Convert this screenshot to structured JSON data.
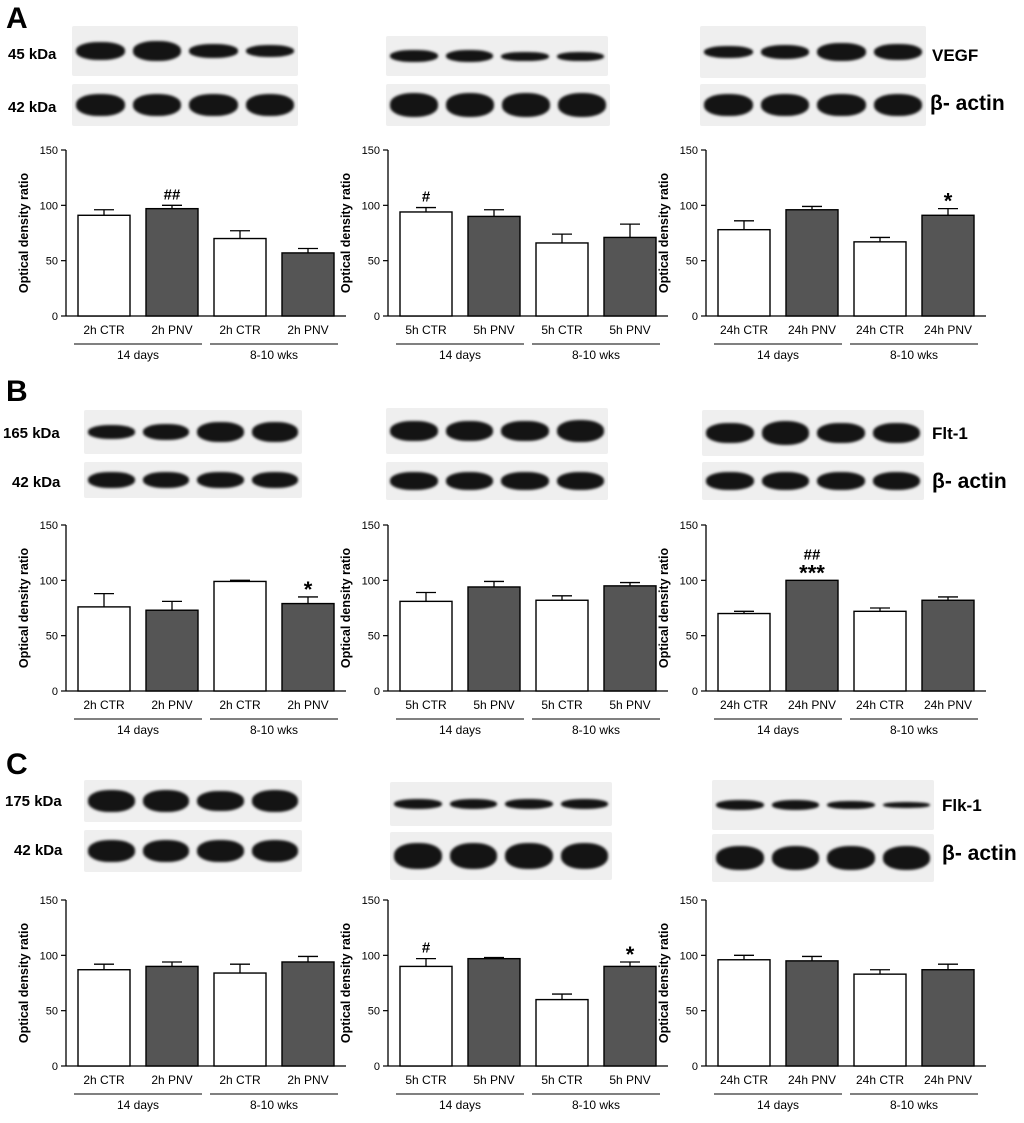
{
  "panels": [
    {
      "letter": "A",
      "protein": "VEGF",
      "beta": "β- actin",
      "marker_kda": "45 kDa",
      "actin_kda": "42 kDa"
    },
    {
      "letter": "B",
      "protein": "Flt-1",
      "beta": "β- actin",
      "marker_kda": "165 kDa",
      "actin_kda": "42 kDa"
    },
    {
      "letter": "C",
      "protein": "Flk-1",
      "beta": "β- actin",
      "marker_kda": "175 kDa",
      "actin_kda": "42 kDa"
    }
  ],
  "colors": {
    "ctr": "#ffffff",
    "pnv": "#555555",
    "axis": "#000000"
  },
  "chart_data": [
    {
      "type": "bar",
      "panel": "A",
      "ylabel": "Optical density ratio",
      "ylim": [
        0,
        150
      ],
      "yticks": [
        0,
        50,
        100,
        150
      ],
      "categories": [
        "2h CTR",
        "2h PNV",
        "2h CTR",
        "2h PNV"
      ],
      "values": [
        91,
        97,
        70,
        57
      ],
      "errors": [
        5,
        3,
        7,
        4
      ],
      "annotations": [
        "",
        "##",
        "",
        ""
      ],
      "groups": [
        "14 days",
        "8-10 wks"
      ]
    },
    {
      "type": "bar",
      "panel": "A",
      "ylabel": "Optical density ratio",
      "ylim": [
        0,
        150
      ],
      "yticks": [
        0,
        50,
        100,
        150
      ],
      "categories": [
        "5h CTR",
        "5h PNV",
        "5h CTR",
        "5h PNV"
      ],
      "values": [
        94,
        90,
        66,
        71
      ],
      "errors": [
        4,
        6,
        8,
        12
      ],
      "annotations": [
        "#",
        "",
        "",
        ""
      ],
      "groups": [
        "14 days",
        "8-10 wks"
      ]
    },
    {
      "type": "bar",
      "panel": "A",
      "ylabel": "Optical density ratio",
      "ylim": [
        0,
        150
      ],
      "yticks": [
        0,
        50,
        100,
        150
      ],
      "categories": [
        "24h CTR",
        "24h PNV",
        "24h CTR",
        "24h PNV"
      ],
      "values": [
        78,
        96,
        67,
        91
      ],
      "errors": [
        8,
        3,
        4,
        6
      ],
      "annotations": [
        "",
        "",
        "",
        "*"
      ],
      "groups": [
        "14 days",
        "8-10 wks"
      ]
    },
    {
      "type": "bar",
      "panel": "B",
      "ylabel": "Optical density ratio",
      "ylim": [
        0,
        150
      ],
      "yticks": [
        0,
        50,
        100,
        150
      ],
      "categories": [
        "2h CTR",
        "2h PNV",
        "2h CTR",
        "2h PNV"
      ],
      "values": [
        76,
        73,
        99,
        79
      ],
      "errors": [
        12,
        8,
        1,
        6
      ],
      "annotations": [
        "",
        "",
        "",
        "*"
      ],
      "groups": [
        "14 days",
        "8-10 wks"
      ]
    },
    {
      "type": "bar",
      "panel": "B",
      "ylabel": "Optical density ratio",
      "ylim": [
        0,
        150
      ],
      "yticks": [
        0,
        50,
        100,
        150
      ],
      "categories": [
        "5h CTR",
        "5h PNV",
        "5h CTR",
        "5h PNV"
      ],
      "values": [
        81,
        94,
        82,
        95
      ],
      "errors": [
        8,
        5,
        4,
        3
      ],
      "annotations": [
        "",
        "",
        "",
        ""
      ],
      "groups": [
        "14 days",
        "8-10 wks"
      ]
    },
    {
      "type": "bar",
      "panel": "B",
      "ylabel": "Optical density ratio",
      "ylim": [
        0,
        150
      ],
      "yticks": [
        0,
        50,
        100,
        150
      ],
      "categories": [
        "24h CTR",
        "24h PNV",
        "24h CTR",
        "24h PNV"
      ],
      "values": [
        70,
        100,
        72,
        82
      ],
      "errors": [
        2,
        0,
        3,
        3
      ],
      "annotations": [
        "",
        "##\n***",
        "",
        ""
      ],
      "groups": [
        "14 days",
        "8-10 wks"
      ]
    },
    {
      "type": "bar",
      "panel": "C",
      "ylabel": "Optical density ratio",
      "ylim": [
        0,
        150
      ],
      "yticks": [
        0,
        50,
        100,
        150
      ],
      "categories": [
        "2h CTR",
        "2h PNV",
        "2h CTR",
        "2h PNV"
      ],
      "values": [
        87,
        90,
        84,
        94
      ],
      "errors": [
        5,
        4,
        8,
        5
      ],
      "annotations": [
        "",
        "",
        "",
        ""
      ],
      "groups": [
        "14 days",
        "8-10 wks"
      ]
    },
    {
      "type": "bar",
      "panel": "C",
      "ylabel": "Optical density ratio",
      "ylim": [
        0,
        150
      ],
      "yticks": [
        0,
        50,
        100,
        150
      ],
      "categories": [
        "5h CTR",
        "5h PNV",
        "5h CTR",
        "5h PNV"
      ],
      "values": [
        90,
        97,
        60,
        90
      ],
      "errors": [
        7,
        1,
        5,
        4
      ],
      "annotations": [
        "#",
        "",
        "",
        "*"
      ],
      "groups": [
        "14 days",
        "8-10 wks"
      ]
    },
    {
      "type": "bar",
      "panel": "C",
      "ylabel": "Optical density ratio",
      "ylim": [
        0,
        150
      ],
      "yticks": [
        0,
        50,
        100,
        150
      ],
      "categories": [
        "24h CTR",
        "24h PNV",
        "24h CTR",
        "24h PNV"
      ],
      "values": [
        96,
        95,
        83,
        87
      ],
      "errors": [
        4,
        4,
        4,
        5
      ],
      "annotations": [
        "",
        "",
        "",
        ""
      ],
      "groups": [
        "14 days",
        "8-10 wks"
      ]
    }
  ]
}
